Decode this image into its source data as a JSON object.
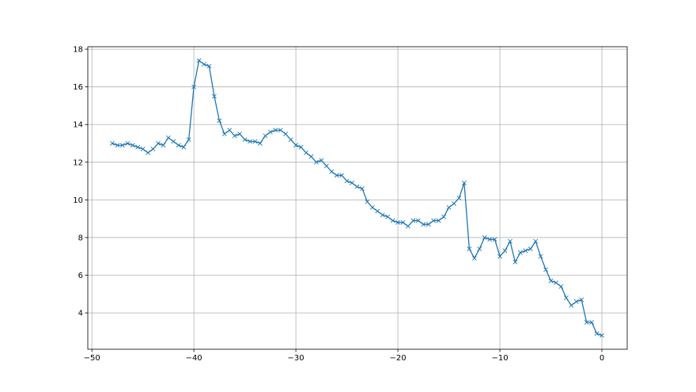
{
  "chart_data": {
    "type": "line",
    "title": "",
    "xlabel": "",
    "ylabel": "",
    "xlim": [
      -50.4,
      2.48
    ],
    "ylim": [
      2.07,
      18.13
    ],
    "grid": true,
    "legend": "none",
    "marker": "x",
    "color": "#1f77b4",
    "xticks": [
      -50,
      -40,
      -30,
      -20,
      -10,
      0
    ],
    "yticks": [
      4,
      6,
      8,
      10,
      12,
      14,
      16,
      18
    ],
    "series": [
      {
        "x": [
          -48,
          -47.5,
          -47,
          -46.5,
          -46,
          -45.5,
          -45,
          -44.5,
          -44,
          -43.5,
          -43,
          -42.5,
          -42,
          -41.5,
          -41,
          -40.5,
          -40,
          -39.5,
          -39,
          -38.5,
          -38,
          -37.5,
          -37,
          -36.5,
          -36,
          -35.5,
          -35,
          -34.5,
          -34,
          -33.5,
          -33,
          -32.5,
          -32,
          -31.5,
          -31,
          -30.5,
          -30,
          -29.5,
          -29,
          -28.5,
          -28,
          -27.5,
          -27,
          -26.5,
          -26,
          -25.5,
          -25,
          -24.5,
          -24,
          -23.5,
          -23,
          -22.5,
          -22,
          -21.5,
          -21,
          -20.5,
          -20,
          -19.5,
          -19,
          -18.5,
          -18,
          -17.5,
          -17,
          -16.5,
          -16,
          -15.5,
          -15,
          -14.5,
          -14,
          -13.5,
          -13,
          -12.5,
          -12,
          -11.5,
          -11,
          -10.5,
          -10,
          -9.5,
          -9,
          -8.5,
          -8,
          -7.5,
          -7,
          -6.5,
          -6,
          -5.5,
          -5,
          -4.5,
          -4,
          -3.5,
          -3,
          -2.5,
          -2,
          -1.5,
          -1,
          -0.5,
          0
        ],
        "y": [
          13.0,
          12.9,
          12.9,
          13.0,
          12.9,
          12.8,
          12.7,
          12.5,
          12.7,
          13.0,
          12.9,
          13.3,
          13.1,
          12.9,
          12.8,
          13.2,
          16.0,
          17.4,
          17.2,
          17.1,
          15.5,
          14.2,
          13.5,
          13.7,
          13.4,
          13.5,
          13.2,
          13.1,
          13.1,
          13.0,
          13.4,
          13.6,
          13.7,
          13.7,
          13.5,
          13.2,
          12.9,
          12.8,
          12.5,
          12.3,
          12.0,
          12.1,
          11.8,
          11.5,
          11.3,
          11.3,
          11.0,
          10.9,
          10.7,
          10.6,
          9.9,
          9.6,
          9.4,
          9.2,
          9.1,
          8.9,
          8.8,
          8.8,
          8.6,
          8.9,
          8.9,
          8.7,
          8.7,
          8.9,
          8.9,
          9.1,
          9.6,
          9.8,
          10.1,
          10.9,
          7.4,
          6.9,
          7.4,
          8.0,
          7.9,
          7.9,
          7.0,
          7.3,
          7.8,
          6.7,
          7.2,
          7.3,
          7.4,
          7.8,
          7.0,
          6.3,
          5.7,
          5.6,
          5.4,
          4.8,
          4.4,
          4.6,
          4.7,
          3.5,
          3.5,
          2.9,
          2.8
        ]
      }
    ]
  }
}
